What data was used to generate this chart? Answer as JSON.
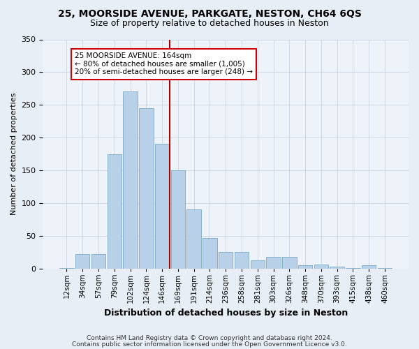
{
  "title1": "25, MOORSIDE AVENUE, PARKGATE, NESTON, CH64 6QS",
  "title2": "Size of property relative to detached houses in Neston",
  "xlabel": "Distribution of detached houses by size in Neston",
  "ylabel": "Number of detached properties",
  "categories": [
    "12sqm",
    "34sqm",
    "57sqm",
    "79sqm",
    "102sqm",
    "124sqm",
    "146sqm",
    "169sqm",
    "191sqm",
    "214sqm",
    "236sqm",
    "258sqm",
    "281sqm",
    "303sqm",
    "326sqm",
    "348sqm",
    "370sqm",
    "393sqm",
    "415sqm",
    "438sqm",
    "460sqm"
  ],
  "values": [
    1,
    22,
    22,
    175,
    270,
    245,
    190,
    150,
    90,
    46,
    25,
    25,
    12,
    18,
    18,
    5,
    6,
    3,
    1,
    5,
    1
  ],
  "bar_color": "#b8d0e8",
  "bar_edgecolor": "#7aaac8",
  "vline_position": 6.5,
  "vline_color": "#aa0000",
  "annotation_text": "25 MOORSIDE AVENUE: 164sqm\n← 80% of detached houses are smaller (1,005)\n20% of semi-detached houses are larger (248) →",
  "annotation_box_edgecolor": "#cc0000",
  "ylim": [
    0,
    350
  ],
  "yticks": [
    0,
    50,
    100,
    150,
    200,
    250,
    300,
    350
  ],
  "footer1": "Contains HM Land Registry data © Crown copyright and database right 2024.",
  "footer2": "Contains public sector information licensed under the Open Government Licence v3.0.",
  "bg_color": "#e8eef5",
  "plot_bg_color": "#eef3f9"
}
